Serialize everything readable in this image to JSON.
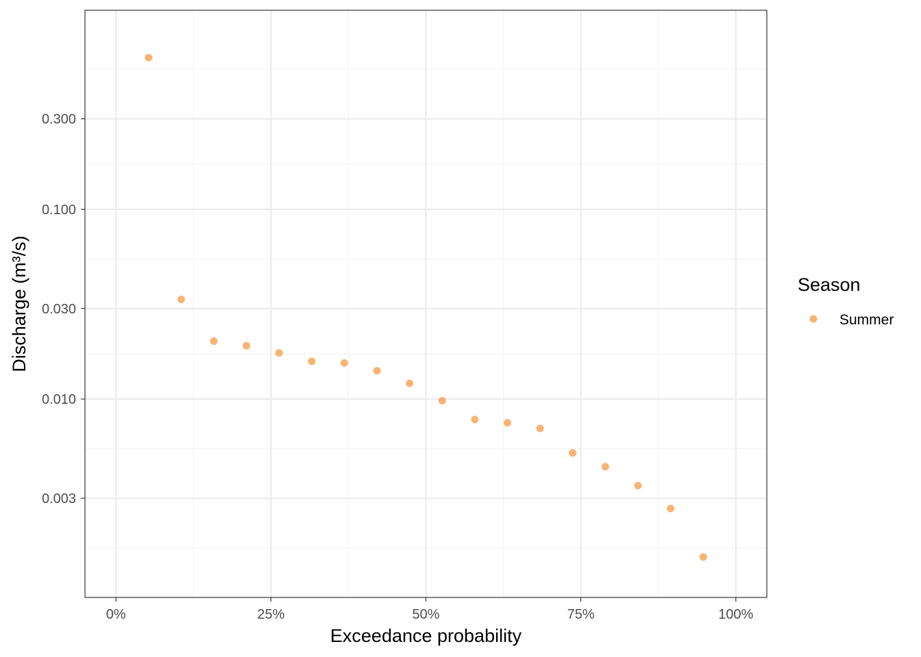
{
  "chart_data": {
    "type": "scatter",
    "title": "",
    "xlabel": "Exceedance probability",
    "ylabel": "Discharge (m³/s)",
    "x_scale": "linear",
    "y_scale": "log10",
    "xlim": [
      -0.05,
      1.05
    ],
    "ylim": [
      0.0009,
      1.12
    ],
    "x_ticks": [
      {
        "value": 0,
        "label": "0%"
      },
      {
        "value": 0.25,
        "label": "25%"
      },
      {
        "value": 0.5,
        "label": "50%"
      },
      {
        "value": 0.75,
        "label": "75%"
      },
      {
        "value": 1,
        "label": "100%"
      }
    ],
    "y_ticks": [
      {
        "value": 0.003,
        "label": "0.003"
      },
      {
        "value": 0.01,
        "label": "0.010"
      },
      {
        "value": 0.03,
        "label": "0.030"
      },
      {
        "value": 0.1,
        "label": "0.100"
      },
      {
        "value": 0.3,
        "label": "0.300"
      }
    ],
    "grid": true,
    "legend": {
      "title": "Season",
      "position": "right"
    },
    "series": [
      {
        "name": "Summer",
        "color": "#F8A65B",
        "points": [
          {
            "x": 0.0526,
            "y": 0.63
          },
          {
            "x": 0.1053,
            "y": 0.0335
          },
          {
            "x": 0.1579,
            "y": 0.0202
          },
          {
            "x": 0.2105,
            "y": 0.0191
          },
          {
            "x": 0.2632,
            "y": 0.0175
          },
          {
            "x": 0.3158,
            "y": 0.0158
          },
          {
            "x": 0.3684,
            "y": 0.0155
          },
          {
            "x": 0.4211,
            "y": 0.0141
          },
          {
            "x": 0.4737,
            "y": 0.0121
          },
          {
            "x": 0.5263,
            "y": 0.0098
          },
          {
            "x": 0.5789,
            "y": 0.0078
          },
          {
            "x": 0.6316,
            "y": 0.0075
          },
          {
            "x": 0.6842,
            "y": 0.007
          },
          {
            "x": 0.7368,
            "y": 0.0052
          },
          {
            "x": 0.7895,
            "y": 0.0044
          },
          {
            "x": 0.8421,
            "y": 0.0035
          },
          {
            "x": 0.8947,
            "y": 0.00265
          },
          {
            "x": 0.9474,
            "y": 0.00147
          }
        ]
      }
    ]
  }
}
